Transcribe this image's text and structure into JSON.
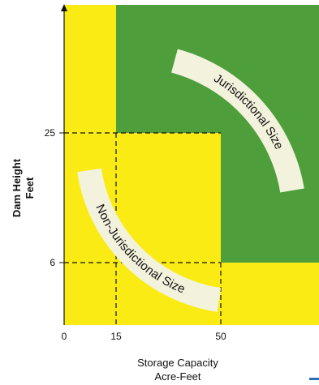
{
  "diagram": {
    "x_axis": {
      "label_line1": "Storage Capacity",
      "label_line2": "Acre-Feet",
      "ticks": [
        "0",
        "15",
        "50"
      ]
    },
    "y_axis": {
      "label_line1": "Dam Height",
      "label_line2": "Feet",
      "ticks": [
        "25",
        "6"
      ]
    },
    "regions": {
      "jurisdictional": "Jurisdictional Size",
      "non_jurisdictional": "Non-Jurisdictional Size"
    },
    "colors": {
      "yellow": "#FAEB14",
      "green": "#4E9E3C",
      "band": "#F3F2DC",
      "axis": "#111111"
    }
  }
}
